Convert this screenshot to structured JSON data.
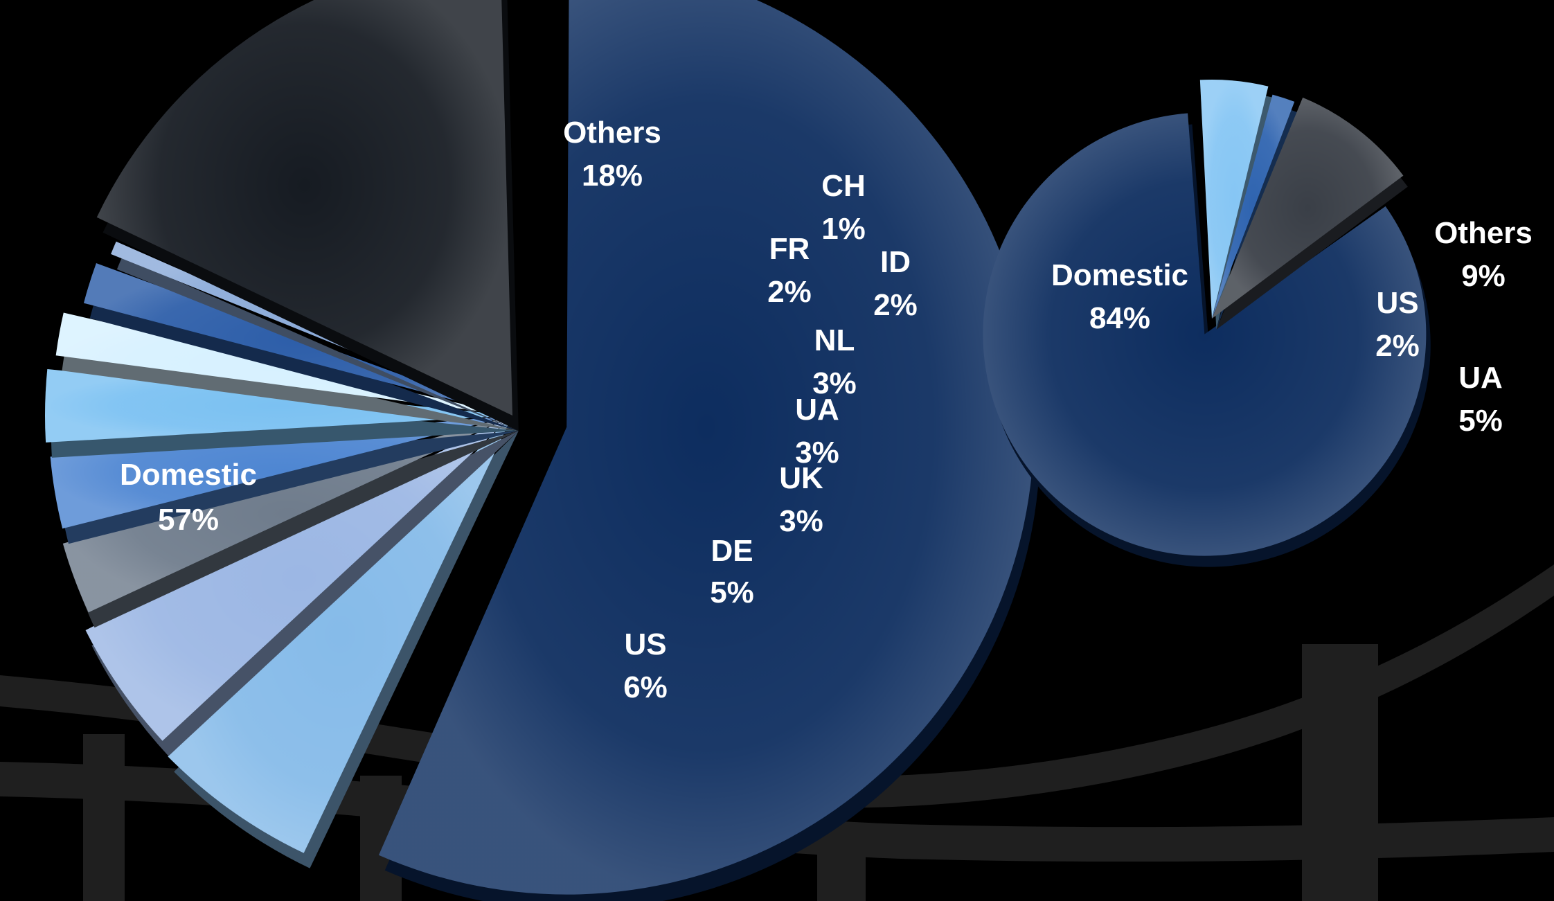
{
  "colors": {
    "background": "#000000",
    "bridge": "#1f1f1f",
    "label": "#ffffff"
  },
  "chart_data": [
    {
      "type": "pie",
      "slices": [
        {
          "label": "Domestic",
          "value": "57%",
          "percent": 57,
          "color": "#0d2d5f",
          "exploded": true
        },
        {
          "label": "US",
          "value": "6%",
          "percent": 6,
          "color": "#86bbe9"
        },
        {
          "label": "DE",
          "value": "5%",
          "percent": 5,
          "color": "#9cb7e4"
        },
        {
          "label": "UK",
          "value": "3%",
          "percent": 3,
          "color": "#6f7c8c"
        },
        {
          "label": "UA",
          "value": "3%",
          "percent": 3,
          "color": "#4e86d2"
        },
        {
          "label": "NL",
          "value": "3%",
          "percent": 3,
          "color": "#7bc1f2"
        },
        {
          "label": "ID",
          "value": "2%",
          "percent": 2,
          "color": "#d7f1ff"
        },
        {
          "label": "FR",
          "value": "2%",
          "percent": 2,
          "color": "#2d5ea9"
        },
        {
          "label": "CH",
          "value": "1%",
          "percent": 1,
          "color": "#8cabd9"
        },
        {
          "label": "Others",
          "value": "18%",
          "percent": 18,
          "color": "#161b22"
        }
      ]
    },
    {
      "type": "pie",
      "slices": [
        {
          "label": "Domestic",
          "value": "84%",
          "percent": 84,
          "color": "#0d2d5f",
          "exploded": true
        },
        {
          "label": "UA",
          "value": "5%",
          "percent": 5,
          "color": "#86c6f4"
        },
        {
          "label": "US",
          "value": "2%",
          "percent": 2,
          "color": "#2f64b0"
        },
        {
          "label": "Others",
          "value": "9%",
          "percent": 9,
          "color": "#3a3f47"
        }
      ]
    }
  ]
}
